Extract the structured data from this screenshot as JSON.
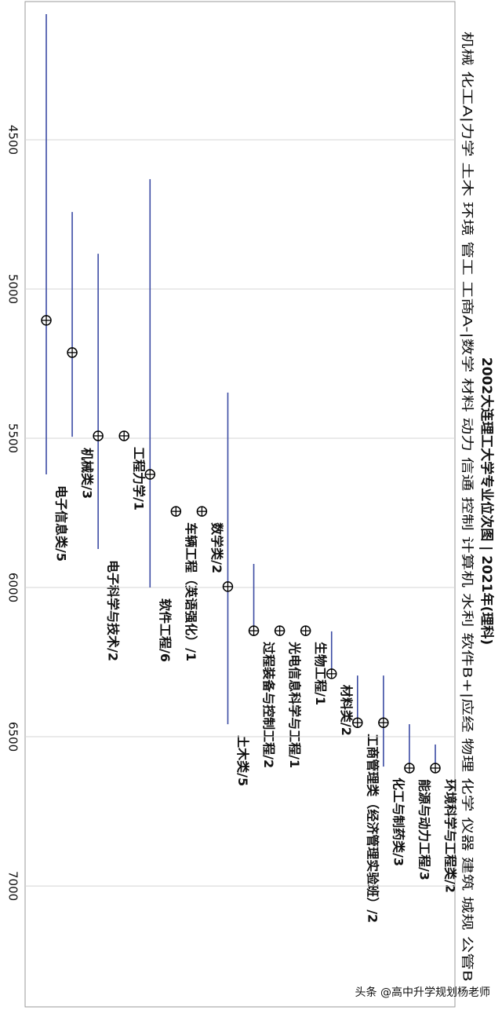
{
  "chart_data": {
    "type": "dotrange",
    "title": "2002大连理工大学专业位次图 | 2021年(理科)",
    "subtitle": "机械 化工A|力学 土木 环境 管工 工商A-|数学 材料 动力 信通 控制 计算机 水利 软件B+|应经 物理 化学 仪器 建筑 城规 公管B",
    "watermark": "头条 @高中升学规划杨老师",
    "categories": [
      "电子信息类/5",
      "机械类/3",
      "电子科学与技术/2",
      "工程力学/1",
      "软件工程/6",
      "车辆工程（英语强化）/1",
      "数学类/2",
      "土木类/5",
      "过程装备与控制工程/2",
      "光电信息科学与工程/1",
      "生物工程/1",
      "材料类/2",
      "工商管理类（经济管理实验班）/2",
      "化工与制药类/3",
      "能源与动力工程/3",
      "环境科学与工程类/2"
    ],
    "values": [
      5105,
      5213,
      5492,
      5492,
      5621,
      5745,
      5745,
      5997,
      6145,
      6145,
      6145,
      6289,
      6453,
      6453,
      6605,
      6605
    ],
    "low": [
      4079,
      4742,
      4882,
      null,
      4632,
      null,
      null,
      5347,
      5921,
      null,
      null,
      6147,
      6295,
      6295,
      6458,
      6526
    ],
    "high": [
      5621,
      5495,
      5871,
      null,
      6000,
      null,
      null,
      6458,
      6145,
      null,
      null,
      6289,
      6453,
      6600,
      6605,
      6605
    ],
    "marker_color": "#000000",
    "range_color": "#3b4ba3",
    "ylim": [
      4037,
      7405
    ],
    "yticks": [
      4500,
      5000,
      5500,
      6000,
      6500,
      7000
    ],
    "grid": true
  }
}
